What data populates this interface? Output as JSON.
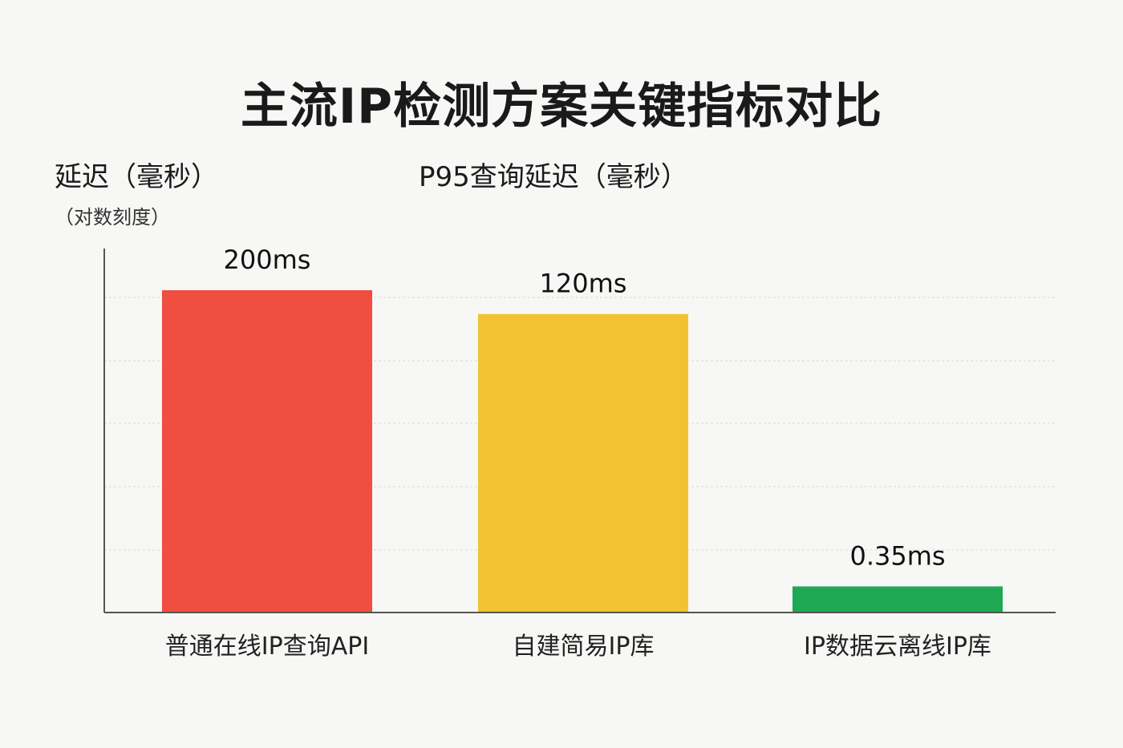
{
  "chart_data": {
    "type": "bar",
    "title": "主流IP检测方案关键指标对比",
    "subtitle": "P95查询延迟（毫秒）",
    "ylabel": "延迟（毫秒）",
    "ylabel_note": "（对数刻度）",
    "yscale": "log",
    "ylim": [
      0.2,
      400
    ],
    "grid": true,
    "categories": [
      "普通在线IP查询API",
      "自建简易IP库",
      "IP数据云离线IP库"
    ],
    "values": [
      200,
      120,
      0.35
    ],
    "data_labels": [
      "200ms",
      "120ms",
      "0.35ms"
    ],
    "colors": [
      "#ef4e40",
      "#f1c232",
      "#1fa853"
    ],
    "gridline_color": "#d9d9d9",
    "axis_color": "#555555"
  }
}
